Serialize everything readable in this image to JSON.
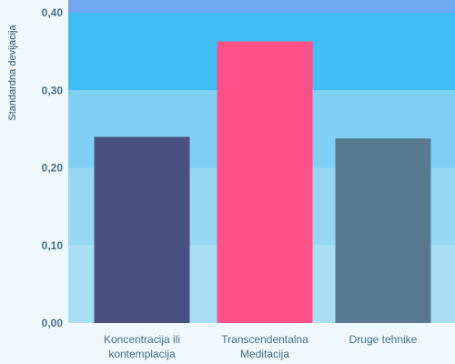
{
  "chart_data": {
    "type": "bar",
    "ylabel": "Standardna devijacija",
    "ylim": [
      0,
      0.4
    ],
    "y_ticks": [
      {
        "value": 0,
        "label": "0,00"
      },
      {
        "value": 0.1,
        "label": "0,10"
      },
      {
        "value": 0.2,
        "label": "0,20"
      },
      {
        "value": 0.3,
        "label": "0,30"
      },
      {
        "value": 0.4,
        "label": "0,40"
      }
    ],
    "bands": [
      {
        "from": 0,
        "to": 0.1,
        "color": "#a8dff5"
      },
      {
        "from": 0.1,
        "to": 0.2,
        "color": "#96d8f4"
      },
      {
        "from": 0.2,
        "to": 0.3,
        "color": "#80cff4"
      },
      {
        "from": 0.3,
        "to": 0.4,
        "color": "#40bdf2"
      },
      {
        "from": 0.4,
        "to": 0.46,
        "color": "#6fa8ee"
      }
    ],
    "categories": [
      {
        "label": [
          "Koncentracija ili",
          "kontemplacija"
        ],
        "value": 0.24,
        "color": "#4a5081"
      },
      {
        "label": [
          "Transcendentalna",
          "Meditacija"
        ],
        "value": 0.363,
        "color": "#ff4f89"
      },
      {
        "label": [
          "Druge tehnike"
        ],
        "value": 0.238,
        "color": "#597a8e"
      }
    ]
  }
}
